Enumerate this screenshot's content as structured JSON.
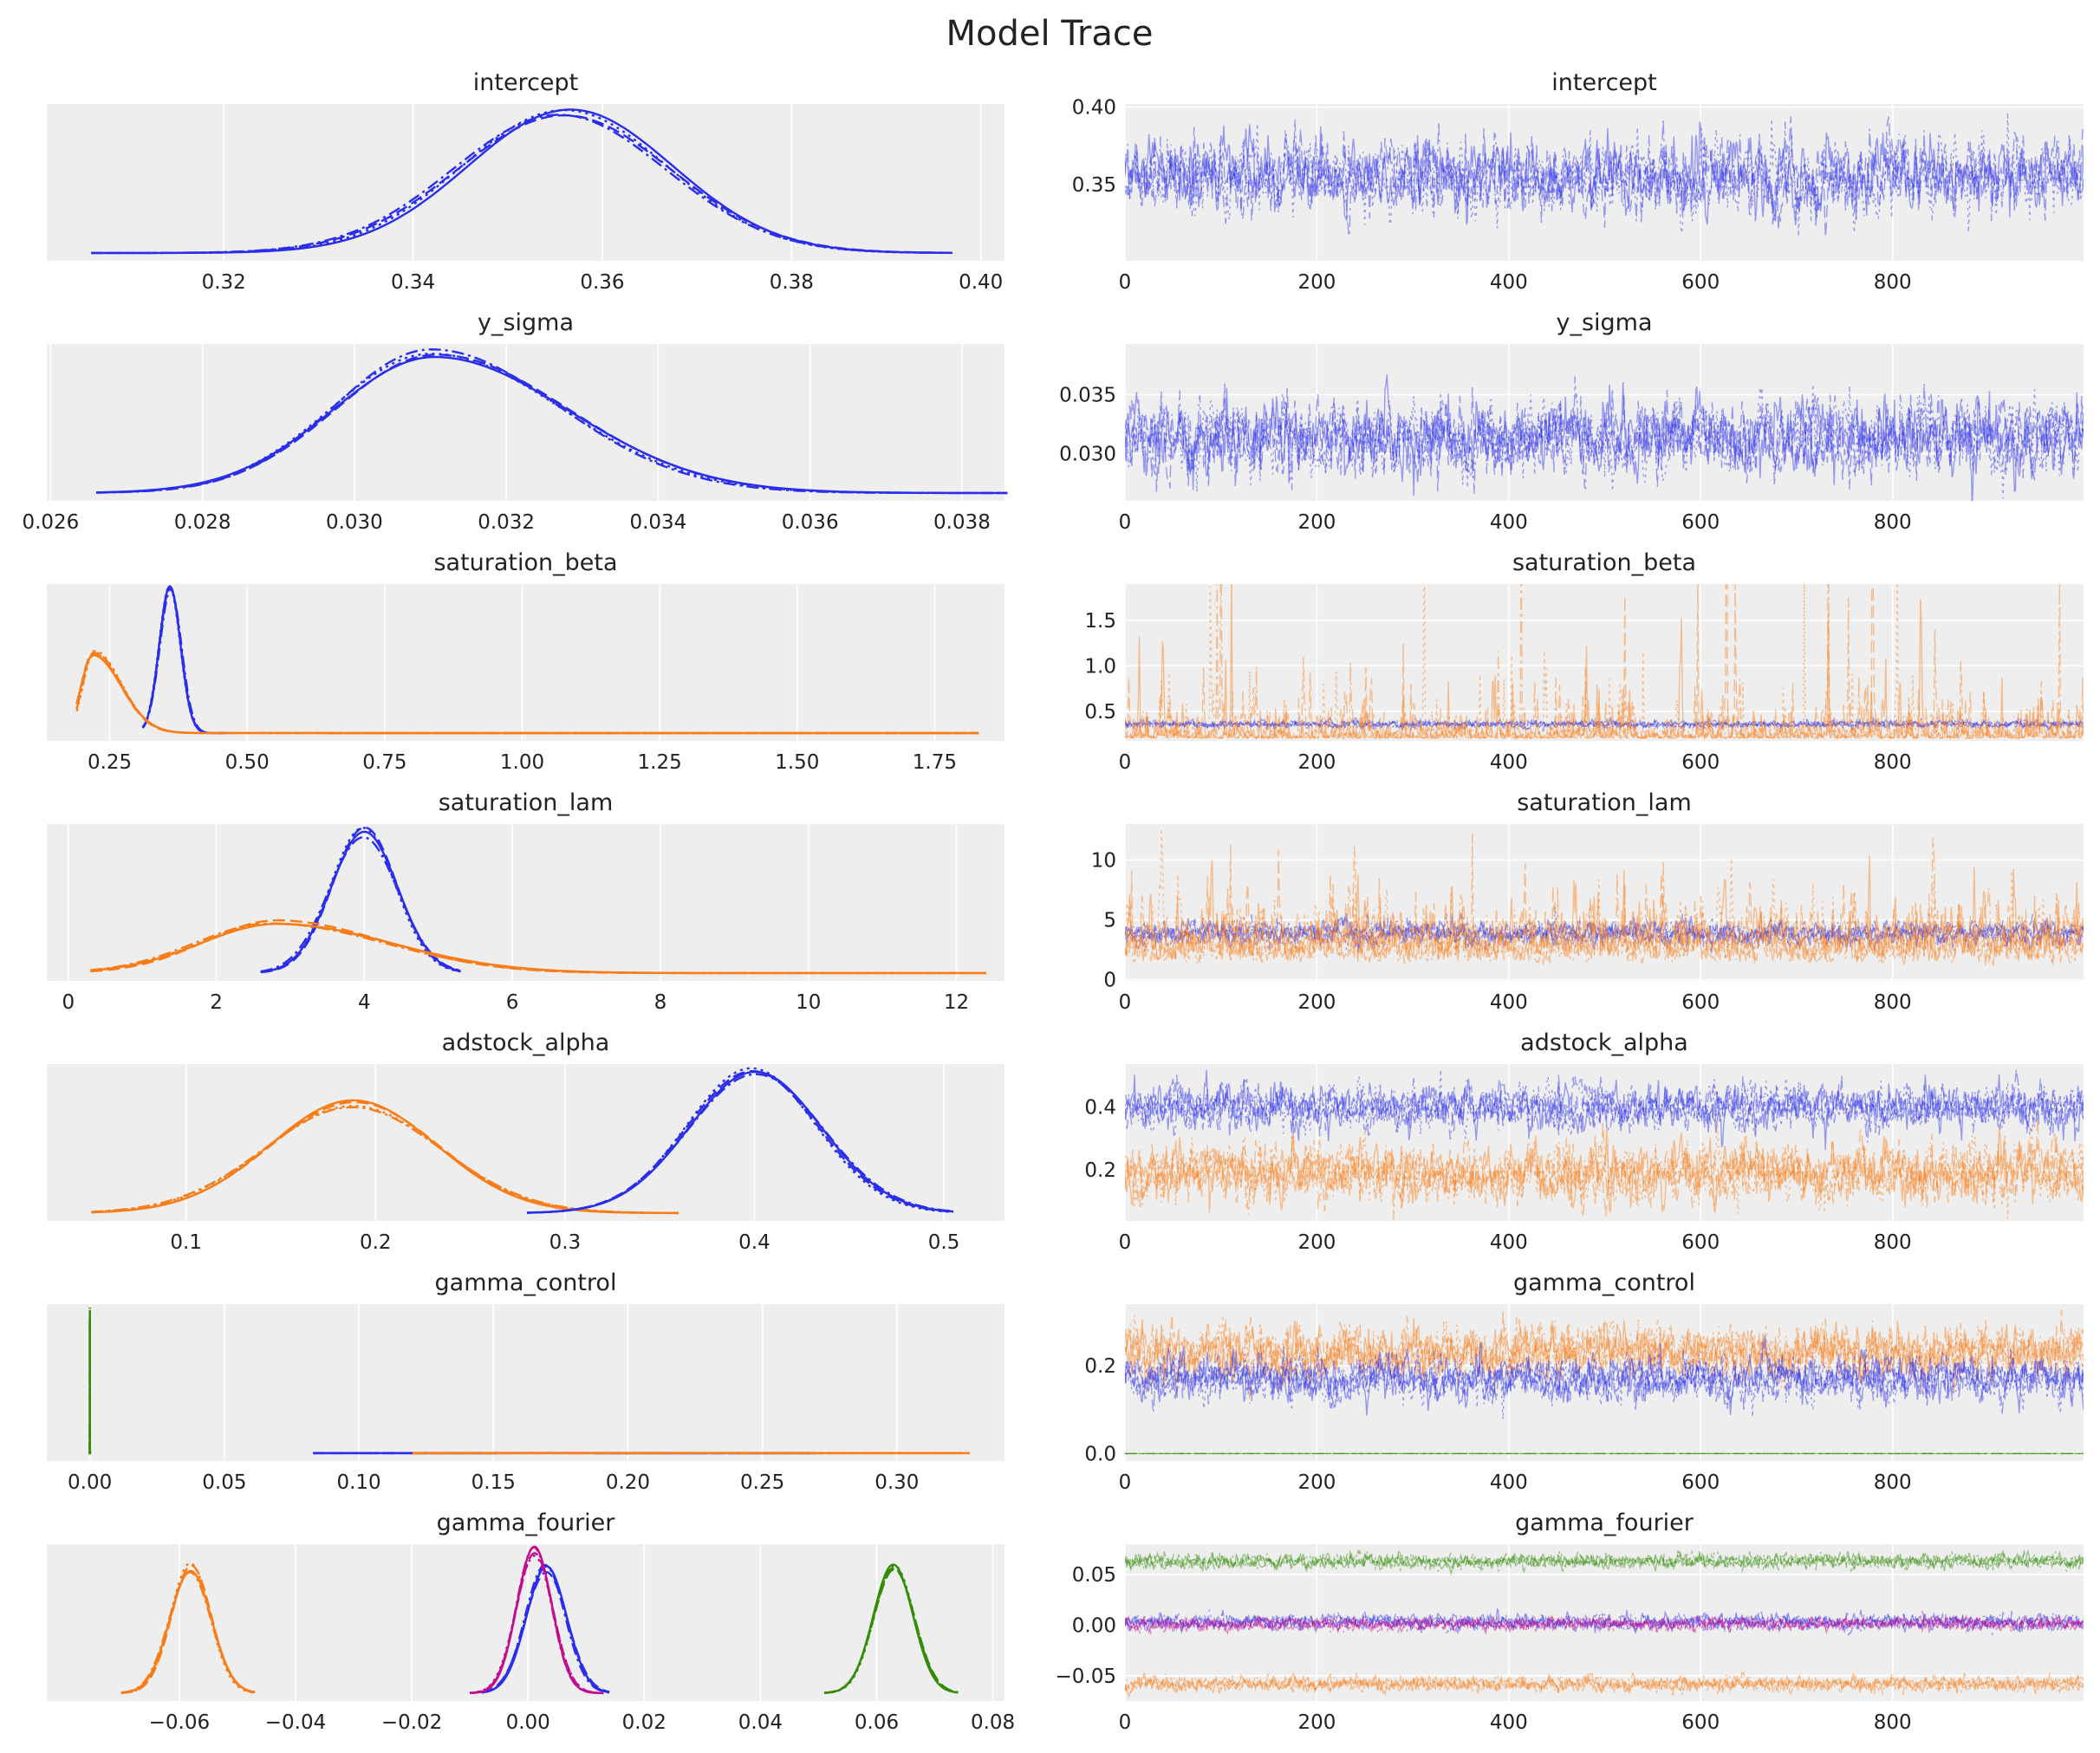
{
  "chart_data": {
    "type": "line",
    "title": "Model Trace",
    "background": "#eeeeee",
    "grid": true,
    "colors": {
      "blue": "#2a2eec",
      "orange": "#fa7c17",
      "green": "#328c06",
      "magenta": "#c10c90"
    },
    "chains": 4,
    "draws": 1000,
    "panels": [
      {
        "title": "intercept",
        "kde": {
          "xlim": [
            0.3013,
            0.4025
          ],
          "xticks": [
            0.32,
            0.34,
            0.36,
            0.38,
            0.4
          ],
          "xtick_labels": [
            "0.32",
            "0.34",
            "0.36",
            "0.38",
            "0.40"
          ],
          "series": [
            {
              "color": "#2a2eec",
              "mode": 0.356,
              "sd_left": 0.011,
              "sd_right": 0.011,
              "range": [
                0.306,
                0.397
              ]
            }
          ]
        },
        "trace": {
          "ylim": [
            0.301,
            0.402
          ],
          "yticks": [
            0.35,
            0.4
          ],
          "ytick_labels": [
            "0.35",
            "0.40"
          ],
          "series": [
            {
              "color": "#2a2eec",
              "mean": 0.355,
              "sd": 0.012
            }
          ]
        }
      },
      {
        "title": "y_sigma",
        "kde": {
          "xlim": [
            0.02595,
            0.03856
          ],
          "xticks": [
            0.026,
            0.028,
            0.03,
            0.032,
            0.034,
            0.036,
            0.038
          ],
          "xtick_labels": [
            "0.026",
            "0.028",
            "0.030",
            "0.032",
            "0.034",
            "0.036",
            "0.038"
          ],
          "series": [
            {
              "color": "#2a2eec",
              "mode": 0.031,
              "sd_left": 0.0013,
              "sd_right": 0.0017,
              "range": [
                0.0266,
                0.0386
              ]
            }
          ]
        },
        "trace": {
          "ylim": [
            0.026,
            0.0393
          ],
          "yticks": [
            0.03,
            0.035
          ],
          "ytick_labels": [
            "0.030",
            "0.035"
          ],
          "series": [
            {
              "color": "#2a2eec",
              "mean": 0.0313,
              "sd": 0.0016
            }
          ]
        }
      },
      {
        "title": "saturation_beta",
        "kde": {
          "xlim": [
            0.1356,
            1.877
          ],
          "xticks": [
            0.25,
            0.5,
            0.75,
            1.0,
            1.25,
            1.5,
            1.75
          ],
          "xtick_labels": [
            "0.25",
            "0.50",
            "0.75",
            "1.00",
            "1.25",
            "1.50",
            "1.75"
          ],
          "series": [
            {
              "color": "#2a2eec",
              "mode": 0.36,
              "sd_left": 0.02,
              "sd_right": 0.02,
              "range": [
                0.31,
                0.46
              ]
            },
            {
              "color": "#fa7c17",
              "mode": 0.22,
              "sd_left": 0.02,
              "sd_right": 0.05,
              "range": [
                0.19,
                1.83
              ]
            }
          ]
        },
        "trace": {
          "ylim": [
            0.176,
            1.897
          ],
          "yticks": [
            0.5,
            1.0,
            1.5
          ],
          "ytick_labels": [
            "0.5",
            "1.0",
            "1.5"
          ],
          "series": [
            {
              "color": "#2a2eec",
              "mean": 0.36,
              "sd": 0.02
            },
            {
              "color": "#fa7c17",
              "mean": 0.24,
              "sd": 0.05,
              "skew": 1.4
            }
          ]
        }
      },
      {
        "title": "saturation_lam",
        "kde": {
          "xlim": [
            -0.29,
            12.65
          ],
          "xticks": [
            0,
            2,
            4,
            6,
            8,
            10,
            12
          ],
          "xtick_labels": [
            "0",
            "2",
            "4",
            "6",
            "8",
            "10",
            "12"
          ],
          "series": [
            {
              "color": "#2a2eec",
              "mode": 4.0,
              "sd_left": 0.45,
              "sd_right": 0.45,
              "range": [
                2.6,
                5.3
              ]
            },
            {
              "color": "#fa7c17",
              "mode": 2.8,
              "sd_left": 1.0,
              "sd_right": 1.5,
              "range": [
                0.3,
                12.4
              ]
            }
          ]
        },
        "trace": {
          "ylim": [
            -0.1,
            13.0
          ],
          "yticks": [
            0,
            5,
            10
          ],
          "ytick_labels": [
            "0",
            "5",
            "10"
          ],
          "series": [
            {
              "color": "#2a2eec",
              "mean": 3.9,
              "sd": 0.5
            },
            {
              "color": "#fa7c17",
              "mean": 3.0,
              "sd": 1.1,
              "skew": 0.5
            }
          ]
        }
      },
      {
        "title": "adstock_alpha",
        "kde": {
          "xlim": [
            0.0265,
            0.532
          ],
          "xticks": [
            0.1,
            0.2,
            0.3,
            0.4,
            0.5
          ],
          "xtick_labels": [
            "0.1",
            "0.2",
            "0.3",
            "0.4",
            "0.5"
          ],
          "series": [
            {
              "color": "#fa7c17",
              "mode": 0.19,
              "sd_left": 0.045,
              "sd_right": 0.045,
              "range": [
                0.05,
                0.36
              ]
            },
            {
              "color": "#2a2eec",
              "mode": 0.4,
              "sd_left": 0.035,
              "sd_right": 0.035,
              "range": [
                0.28,
                0.505
              ]
            }
          ]
        },
        "trace": {
          "ylim": [
            0.038,
            0.536
          ],
          "yticks": [
            0.2,
            0.4
          ],
          "ytick_labels": [
            "0.2",
            "0.4"
          ],
          "series": [
            {
              "color": "#2a2eec",
              "mean": 0.4,
              "sd": 0.035
            },
            {
              "color": "#fa7c17",
              "mean": 0.19,
              "sd": 0.045
            }
          ]
        }
      },
      {
        "title": "gamma_control",
        "kde": {
          "xlim": [
            -0.016,
            0.34
          ],
          "xticks": [
            0.0,
            0.05,
            0.1,
            0.15,
            0.2,
            0.25,
            0.3
          ],
          "xtick_labels": [
            "0.00",
            "0.05",
            "0.10",
            "0.15",
            "0.20",
            "0.25",
            "0.30"
          ],
          "series": [
            {
              "color": "#328c06",
              "mode": 0.0,
              "sd_left": 2e-05,
              "sd_right": 2e-05,
              "range": [
                -0.0004,
                0.0004
              ]
            },
            {
              "color": "#2a2eec",
              "mode": 0.17,
              "sd_left": 0.025,
              "sd_right": 0.025,
              "range": [
                0.083,
                0.27
              ]
            },
            {
              "color": "#fa7c17",
              "mode": 0.23,
              "sd_left": 0.03,
              "sd_right": 0.03,
              "range": [
                0.12,
                0.327
              ]
            }
          ]
        },
        "trace": {
          "ylim": [
            -0.017,
            0.34
          ],
          "yticks": [
            0.0,
            0.2
          ],
          "ytick_labels": [
            "0.0",
            "0.2"
          ],
          "series": [
            {
              "color": "#fa7c17",
              "mean": 0.23,
              "sd": 0.03
            },
            {
              "color": "#2a2eec",
              "mean": 0.17,
              "sd": 0.025
            },
            {
              "color": "#328c06",
              "mean": 0.0,
              "sd": 0.0
            }
          ]
        }
      },
      {
        "title": "gamma_fourier",
        "kde": {
          "xlim": [
            -0.0828,
            0.082
          ],
          "xticks": [
            -0.06,
            -0.04,
            -0.02,
            0.0,
            0.02,
            0.04,
            0.06,
            0.08
          ],
          "xtick_labels": [
            "−0.06",
            "−0.04",
            "−0.02",
            "0.00",
            "0.02",
            "0.04",
            "0.06",
            "0.08"
          ],
          "series": [
            {
              "color": "#fa7c17",
              "mode": -0.058,
              "sd_left": 0.0035,
              "sd_right": 0.0035,
              "range": [
                -0.07,
                -0.047
              ]
            },
            {
              "color": "#2a2eec",
              "mode": 0.003,
              "sd_left": 0.0035,
              "sd_right": 0.0035,
              "range": [
                -0.008,
                0.014
              ]
            },
            {
              "color": "#c10c90",
              "mode": 0.001,
              "sd_left": 0.0031,
              "sd_right": 0.0031,
              "range": [
                -0.01,
                0.013
              ]
            },
            {
              "color": "#328c06",
              "mode": 0.063,
              "sd_left": 0.0035,
              "sd_right": 0.0035,
              "range": [
                0.051,
                0.074
              ]
            }
          ]
        },
        "trace": {
          "ylim": [
            -0.075,
            0.08
          ],
          "yticks": [
            -0.05,
            0.0,
            0.05
          ],
          "ytick_labels": [
            "−0.05",
            "0.00",
            "0.05"
          ],
          "series": [
            {
              "color": "#328c06",
              "mean": 0.063,
              "sd": 0.0035
            },
            {
              "color": "#2a2eec",
              "mean": 0.003,
              "sd": 0.0035
            },
            {
              "color": "#c10c90",
              "mean": 0.001,
              "sd": 0.0031
            },
            {
              "color": "#fa7c17",
              "mean": -0.058,
              "sd": 0.0035
            }
          ]
        }
      }
    ],
    "trace_xlim": [
      0,
      999
    ],
    "trace_xticks": [
      0,
      200,
      400,
      600,
      800
    ],
    "trace_xtick_labels": [
      "0",
      "200",
      "400",
      "600",
      "800"
    ]
  }
}
